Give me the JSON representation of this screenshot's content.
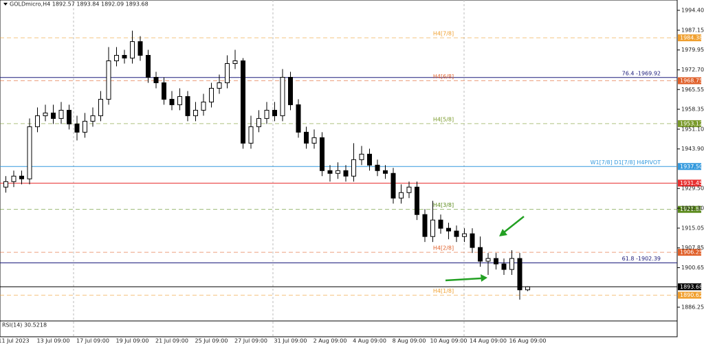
{
  "chart_data": {
    "type": "candlestick",
    "title": "GOLDmicro,H4  1892.57 1893.84 1892.09 1893.68",
    "categories": [
      null,
      "11 Jul 2023",
      null,
      null,
      null,
      null,
      "13 Jul 09:00",
      null,
      null,
      null,
      null,
      "17 Jul 09:00",
      null,
      null,
      null,
      null,
      "19 Jul 09:00",
      null,
      null,
      null,
      null,
      "21 Jul 09:00",
      null,
      null,
      null,
      null,
      "25 Jul 09:00",
      null,
      null,
      null,
      null,
      "27 Jul 09:00",
      null,
      null,
      null,
      null,
      "31 Jul 09:00",
      null,
      null,
      null,
      null,
      "2 Aug 09:00",
      null,
      null,
      null,
      null,
      "4 Aug 09:00",
      null,
      null,
      null,
      null,
      "8 Aug 09:00",
      null,
      null,
      null,
      null,
      "10 Aug 09:00",
      null,
      null,
      null,
      null,
      "14 Aug 09:00",
      null,
      null,
      null,
      null,
      "16 Aug 09:00"
    ],
    "open": [
      1930,
      1932,
      1934,
      1933,
      1952,
      1956,
      1957,
      1955,
      1958,
      1953,
      1950,
      1954,
      1956,
      1962,
      1976,
      1978,
      1977,
      1983,
      1978,
      1970,
      1968,
      1962,
      1960,
      1963,
      1956,
      1958,
      1961,
      1966,
      1968,
      1975,
      1976,
      1946,
      1952,
      1955,
      1958,
      1956,
      1970,
      1960,
      1950,
      1946,
      1948,
      1936,
      1935,
      1936,
      1934,
      1940,
      1942,
      1938,
      1936,
      1935,
      1926,
      1928,
      1930,
      1920,
      1912,
      1918,
      1915,
      1914,
      1912,
      1913,
      1908,
      1903,
      1904,
      1902,
      1900,
      1904,
      1892.57
    ],
    "high": [
      1934,
      1936,
      1936,
      1955,
      1959,
      1960,
      1960,
      1961,
      1960,
      1956,
      1957,
      1959,
      1965,
      1981,
      1981,
      1980,
      1987,
      1985,
      1980,
      1972,
      1970,
      1965,
      1966,
      1965,
      1961,
      1964,
      1968,
      1971,
      1978,
      1980,
      1977,
      1956,
      1958,
      1961,
      1961,
      1973,
      1972,
      1962,
      1952,
      1951,
      1950,
      1938,
      1939,
      1938,
      1946,
      1945,
      1944,
      1940,
      1938,
      1937,
      1931,
      1932,
      1932,
      1922,
      1925,
      1920,
      1917,
      1916,
      1915,
      1915,
      1912,
      1906,
      1906,
      1904,
      1907,
      1906,
      1893.84
    ],
    "low": [
      1928,
      1930,
      1931,
      1931,
      1950,
      1954,
      1953,
      1953,
      1951,
      1947,
      1948,
      1952,
      1954,
      1960,
      1974,
      1975,
      1975,
      1976,
      1968,
      1966,
      1960,
      1958,
      1958,
      1954,
      1954,
      1956,
      1959,
      1964,
      1966,
      1973,
      1944,
      1944,
      1950,
      1953,
      1954,
      1954,
      1958,
      1948,
      1944,
      1944,
      1934,
      1932,
      1933,
      1932,
      1932,
      1938,
      1936,
      1934,
      1933,
      1924,
      1924,
      1926,
      1918,
      1910,
      1910,
      1913,
      1911,
      1910,
      1910,
      1906,
      1901,
      1898,
      1900,
      1898,
      1898,
      1889,
      1892.09
    ],
    "close": [
      1932,
      1934,
      1933,
      1952,
      1956,
      1957,
      1955,
      1958,
      1953,
      1950,
      1954,
      1956,
      1962,
      1976,
      1978,
      1977,
      1983,
      1978,
      1970,
      1968,
      1962,
      1960,
      1963,
      1956,
      1958,
      1961,
      1966,
      1968,
      1975,
      1976,
      1946,
      1952,
      1955,
      1958,
      1956,
      1970,
      1960,
      1950,
      1946,
      1948,
      1936,
      1935,
      1936,
      1934,
      1940,
      1942,
      1938,
      1936,
      1935,
      1926,
      1928,
      1930,
      1920,
      1912,
      1918,
      1915,
      1914,
      1912,
      1913,
      1908,
      1903,
      1904,
      1902,
      1900,
      1904,
      1892.57,
      1893.68
    ],
    "up_color": "#ffffff",
    "down_color": "#000000",
    "ylim": [
      1881.24,
      1998.16
    ],
    "yticks": [
      {
        "value": 1994.4,
        "label": "1994.40"
      },
      1987.15,
      1979.95,
      {
        "value": 1972.7,
        "label": "1972.70"
      },
      1965.55,
      1958.35,
      {
        "value": 1951.1,
        "label": "1951.10"
      },
      {
        "value": 1943.9,
        "label": "1943.90"
      },
      {
        "value": 1929.5,
        "label": "1929.50"
      },
      {
        "value": 1922.3,
        "label": "1922.30"
      },
      1915.05,
      1907.85,
      1900.65,
      1886.25
    ],
    "levels": [
      {
        "value": 1984.38,
        "label": "1984.38",
        "text": "H4[7/8]",
        "color": "#f0a030",
        "style": "dashed"
      },
      {
        "value": 1969.92,
        "text": "76.4 -1969.92",
        "color": "#1a1a7a",
        "style": "solid"
      },
      {
        "value": 1968.75,
        "label": "1968.75",
        "text": "H4[6/8]",
        "color": "#e0602a",
        "style": "dashed"
      },
      {
        "value": 1953.12,
        "label": "1953.12",
        "text": "H4[5/8]",
        "color": "#7a9a2a",
        "style": "dashed"
      },
      {
        "value": 1937.5,
        "label": "1937.50",
        "text": "W1[7/8] D1[7/8] H4PIVOT",
        "color": "#3399dd",
        "style": "solid"
      },
      {
        "value": 1931.45,
        "label": "1931.45",
        "color": "#e83030",
        "style": "solid"
      },
      {
        "value": 1921.88,
        "label": "1921.88",
        "text": "H4[3/8]",
        "color": "#5a8a1a",
        "style": "dashed"
      },
      {
        "value": 1906.25,
        "label": "1906.25",
        "text": "H4[2/8]",
        "color": "#e0602a",
        "style": "dashed"
      },
      {
        "value": 1902.39,
        "text": "61.8 -1902.39",
        "color": "#1a1a7a",
        "style": "solid"
      },
      {
        "value": 1893.68,
        "label": "1893.68",
        "color": "#000000",
        "style": "solid"
      },
      {
        "value": 1890.62,
        "label": "1890.62",
        "text": "H4[1/8]",
        "color": "#f0a030",
        "style": "dashed"
      }
    ],
    "rsi_label": "RSI(14) 30.5218"
  }
}
